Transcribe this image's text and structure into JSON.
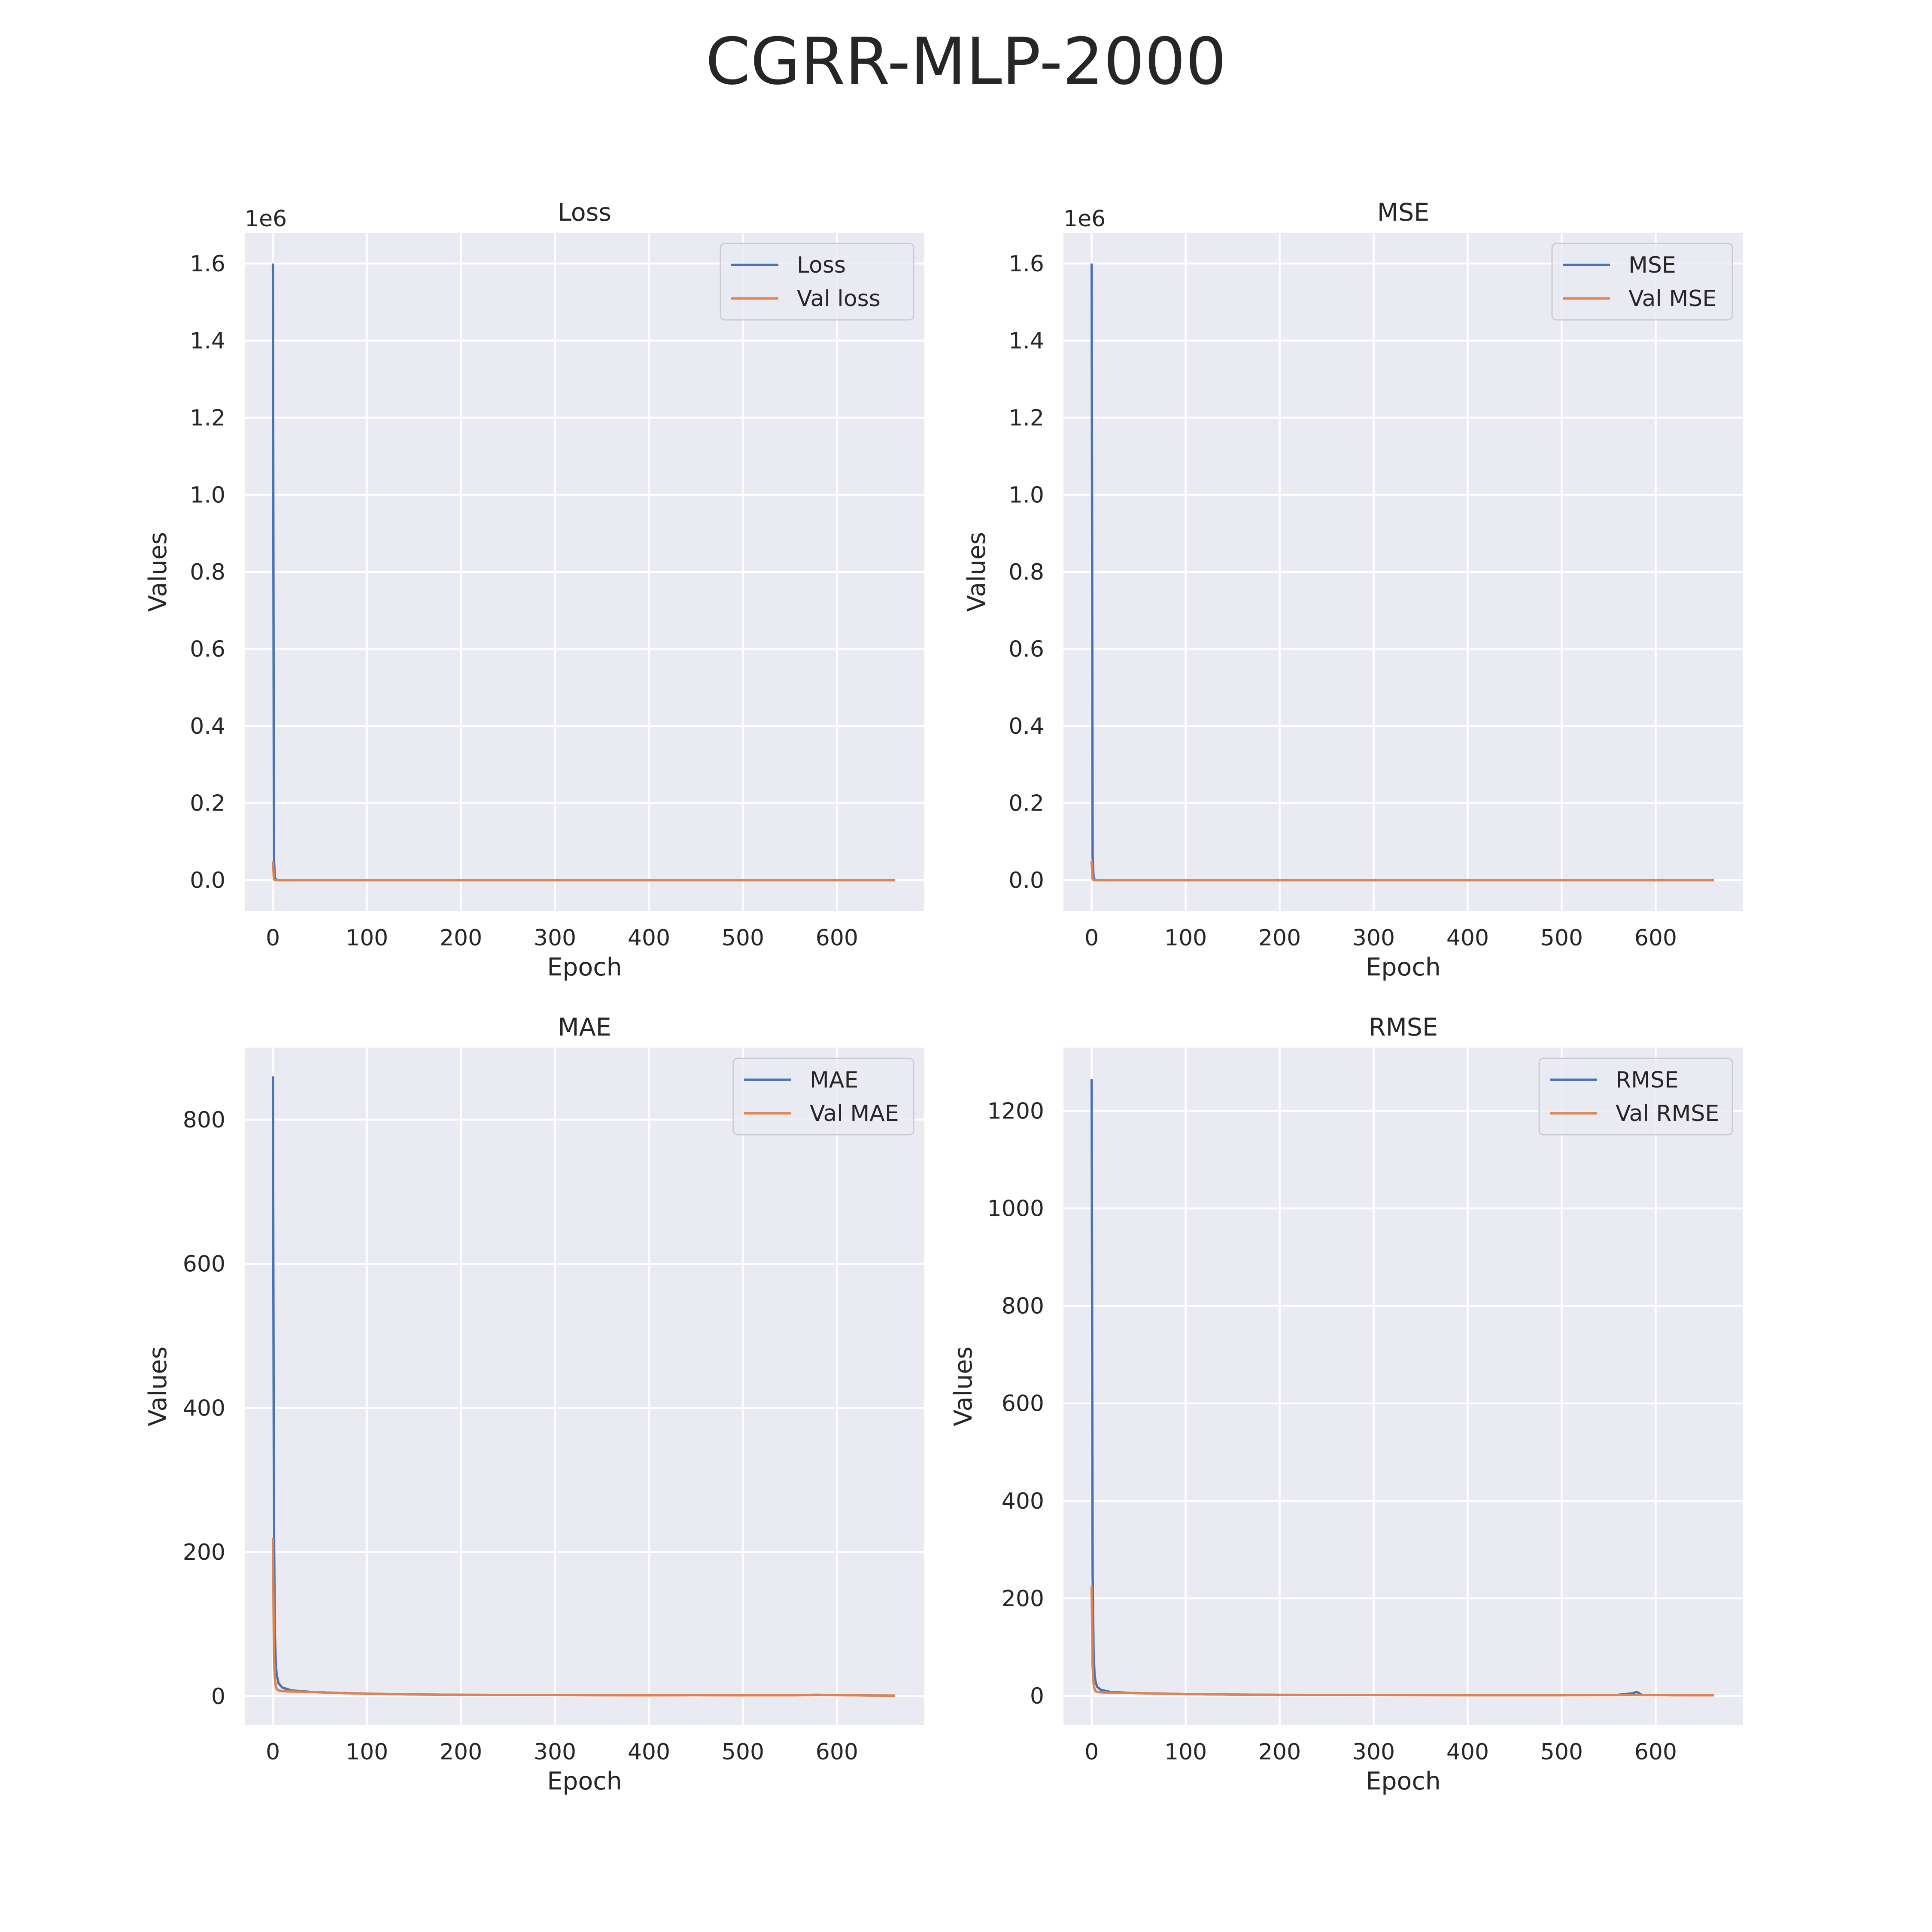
{
  "suptitle": "CGRR-MLP-2000",
  "colors": {
    "series1": "#4c72b0",
    "series2": "#dd8452",
    "panel_bg": "#eaeaf2",
    "grid": "#ffffff"
  },
  "chart_data": [
    {
      "type": "line",
      "title": "Loss",
      "xlabel": "Epoch",
      "ylabel": "Values",
      "offset_text": "1e6",
      "xlim": [
        -30,
        693
      ],
      "ylim": [
        -80000,
        1680000
      ],
      "xticks": [
        0,
        100,
        200,
        300,
        400,
        500,
        600
      ],
      "xtick_labels": [
        "0",
        "100",
        "200",
        "300",
        "400",
        "500",
        "600"
      ],
      "yticks": [
        0,
        200000,
        400000,
        600000,
        800000,
        1000000,
        1200000,
        1400000,
        1600000
      ],
      "ytick_labels": [
        "0.0",
        "0.2",
        "0.4",
        "0.6",
        "0.8",
        "1.0",
        "1.2",
        "1.4",
        "1.6"
      ],
      "grid": true,
      "legend_position": "top-right",
      "series": [
        {
          "name": "Loss",
          "x": [
            0,
            1,
            2,
            3,
            5,
            10,
            50,
            100,
            200,
            300,
            400,
            500,
            600,
            662
          ],
          "y": [
            1600000,
            60000,
            8000,
            2000,
            500,
            100,
            20,
            10,
            5,
            3,
            2,
            2,
            2,
            2
          ]
        },
        {
          "name": "Val loss",
          "x": [
            0,
            1,
            2,
            3,
            5,
            10,
            50,
            100,
            200,
            300,
            400,
            500,
            600,
            662
          ],
          "y": [
            50000,
            3000,
            800,
            300,
            100,
            50,
            20,
            10,
            5,
            3,
            2,
            2,
            2,
            2
          ]
        }
      ]
    },
    {
      "type": "line",
      "title": "MSE",
      "xlabel": "Epoch",
      "ylabel": "Values",
      "offset_text": "1e6",
      "xlim": [
        -30,
        693
      ],
      "ylim": [
        -80000,
        1680000
      ],
      "xticks": [
        0,
        100,
        200,
        300,
        400,
        500,
        600
      ],
      "xtick_labels": [
        "0",
        "100",
        "200",
        "300",
        "400",
        "500",
        "600"
      ],
      "yticks": [
        0,
        200000,
        400000,
        600000,
        800000,
        1000000,
        1200000,
        1400000,
        1600000
      ],
      "ytick_labels": [
        "0.0",
        "0.2",
        "0.4",
        "0.6",
        "0.8",
        "1.0",
        "1.2",
        "1.4",
        "1.6"
      ],
      "grid": true,
      "legend_position": "top-right",
      "series": [
        {
          "name": "MSE",
          "x": [
            0,
            1,
            2,
            3,
            5,
            10,
            50,
            100,
            200,
            300,
            400,
            500,
            600,
            662
          ],
          "y": [
            1600000,
            60000,
            8000,
            2000,
            500,
            100,
            20,
            10,
            5,
            3,
            2,
            2,
            2,
            2
          ]
        },
        {
          "name": "Val MSE",
          "x": [
            0,
            1,
            2,
            3,
            5,
            10,
            50,
            100,
            200,
            300,
            400,
            500,
            600,
            662
          ],
          "y": [
            50000,
            3000,
            800,
            300,
            100,
            50,
            20,
            10,
            5,
            3,
            2,
            2,
            2,
            2
          ]
        }
      ]
    },
    {
      "type": "line",
      "title": "MAE",
      "xlabel": "Epoch",
      "ylabel": "Values",
      "offset_text": "",
      "xlim": [
        -30,
        693
      ],
      "ylim": [
        -40,
        900
      ],
      "xticks": [
        0,
        100,
        200,
        300,
        400,
        500,
        600
      ],
      "xtick_labels": [
        "0",
        "100",
        "200",
        "300",
        "400",
        "500",
        "600"
      ],
      "yticks": [
        0,
        200,
        400,
        600,
        800
      ],
      "ytick_labels": [
        "0",
        "200",
        "400",
        "600",
        "800"
      ],
      "grid": true,
      "legend_position": "top-right",
      "series": [
        {
          "name": "MAE",
          "x": [
            0,
            1,
            2,
            3,
            4,
            6,
            10,
            20,
            40,
            60,
            100,
            150,
            200,
            300,
            400,
            450,
            500,
            550,
            580,
            620,
            662
          ],
          "y": [
            860,
            250,
            90,
            45,
            30,
            18,
            12,
            8,
            6,
            5,
            3.5,
            2.5,
            2,
            1.5,
            1.2,
            1.5,
            1.2,
            1.5,
            2,
            1.2,
            1
          ]
        },
        {
          "name": "Val MAE",
          "x": [
            0,
            1,
            2,
            3,
            4,
            6,
            10,
            20,
            40,
            60,
            100,
            150,
            200,
            300,
            400,
            450,
            500,
            550,
            580,
            620,
            662
          ],
          "y": [
            220,
            60,
            25,
            14,
            10,
            8,
            7,
            6.5,
            6,
            5,
            3.5,
            2.5,
            2,
            1.5,
            1.2,
            1.4,
            1.2,
            1.3,
            1.6,
            1.2,
            1
          ]
        }
      ]
    },
    {
      "type": "line",
      "title": "RMSE",
      "xlabel": "Epoch",
      "ylabel": "Values",
      "offset_text": "",
      "xlim": [
        -30,
        693
      ],
      "ylim": [
        -60,
        1330
      ],
      "xticks": [
        0,
        100,
        200,
        300,
        400,
        500,
        600
      ],
      "xtick_labels": [
        "0",
        "100",
        "200",
        "300",
        "400",
        "500",
        "600"
      ],
      "yticks": [
        0,
        200,
        400,
        600,
        800,
        1000,
        1200
      ],
      "ytick_labels": [
        "0",
        "200",
        "400",
        "600",
        "800",
        "1000",
        "1200"
      ],
      "grid": true,
      "legend_position": "top-right",
      "series": [
        {
          "name": "RMSE",
          "x": [
            0,
            1,
            2,
            3,
            4,
            6,
            10,
            20,
            40,
            60,
            100,
            150,
            200,
            300,
            400,
            500,
            560,
            575,
            580,
            585,
            620,
            662
          ],
          "y": [
            1265,
            250,
            90,
            45,
            30,
            18,
            12,
            8,
            6,
            5,
            3.5,
            2.5,
            2,
            1.5,
            1.2,
            1.2,
            2,
            5,
            8,
            2,
            1.2,
            1
          ]
        },
        {
          "name": "Val RMSE",
          "x": [
            0,
            1,
            2,
            3,
            4,
            6,
            10,
            20,
            40,
            60,
            100,
            150,
            200,
            300,
            400,
            500,
            560,
            575,
            580,
            585,
            620,
            662
          ],
          "y": [
            225,
            60,
            25,
            14,
            10,
            8,
            7,
            6.5,
            6,
            5,
            3.5,
            2.5,
            2,
            1.5,
            1.2,
            1.2,
            1.3,
            1.5,
            1.5,
            1.3,
            1.2,
            1
          ]
        }
      ]
    }
  ]
}
